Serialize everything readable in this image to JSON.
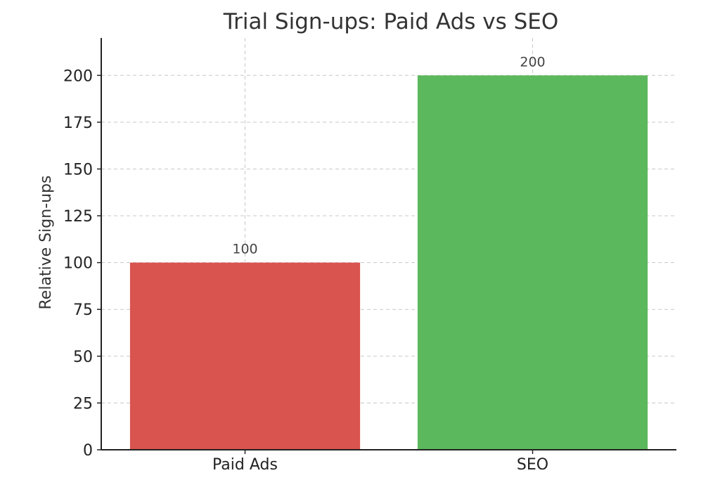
{
  "chart_data": {
    "type": "bar",
    "title": "Trial Sign-ups: Paid Ads vs SEO",
    "xlabel": "",
    "ylabel": "Relative Sign-ups",
    "categories": [
      "Paid Ads",
      "SEO"
    ],
    "values": [
      100,
      200
    ],
    "data_labels": [
      "100",
      "200"
    ],
    "bar_colors": [
      "#d9534f",
      "#5cb85c"
    ],
    "ylim": [
      0,
      220
    ],
    "yticks": [
      0,
      25,
      50,
      75,
      100,
      125,
      150,
      175,
      200
    ],
    "grid": true,
    "legend": "none"
  }
}
